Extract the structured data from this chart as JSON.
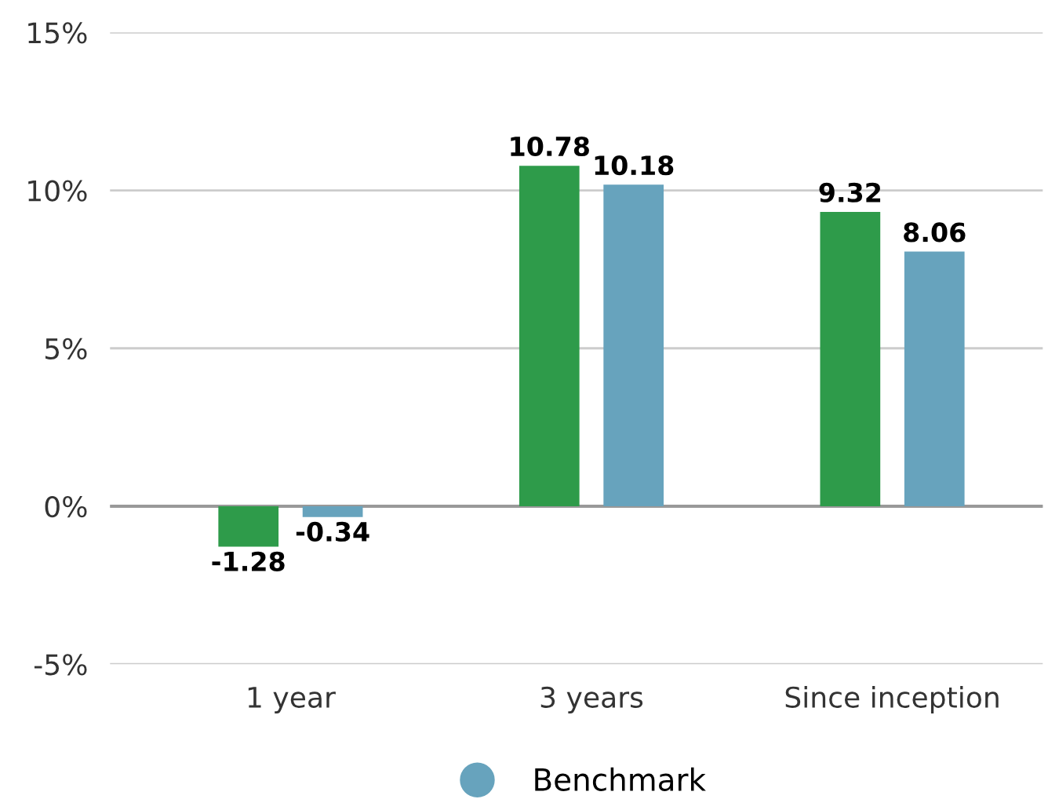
{
  "chart_data": {
    "type": "bar",
    "categories": [
      "1 year",
      "3 years",
      "Since inception"
    ],
    "series": [
      {
        "color": "#2e9b4a",
        "values": [
          -1.28,
          10.78,
          9.32
        ]
      },
      {
        "name": "Benchmark",
        "color": "#67a3bd",
        "values": [
          -0.34,
          10.18,
          8.06
        ]
      }
    ],
    "ylim": [
      -5,
      15
    ],
    "yticks": [
      {
        "value": -5,
        "label": "-5%"
      },
      {
        "value": 0,
        "label": "0%"
      },
      {
        "value": 5,
        "label": "5%"
      },
      {
        "value": 10,
        "label": "10%"
      },
      {
        "value": 15,
        "label": "15%"
      }
    ],
    "grid": "y",
    "legend": "bottom",
    "data_labels": true
  }
}
